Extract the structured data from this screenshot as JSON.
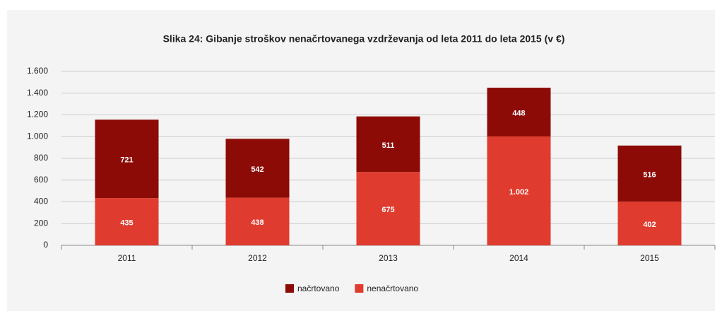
{
  "chart_data": {
    "type": "stacked_bar",
    "title": "Slika 24: Gibanje stroškov nenačrtovanega vzdrževanja od leta 2011 do leta 2015 (v €)",
    "categories": [
      "2011",
      "2012",
      "2013",
      "2014",
      "2015"
    ],
    "series": [
      {
        "name": "nenačrtovano",
        "color": "#e03b2f",
        "values": [
          435,
          438,
          675,
          1002,
          402
        ],
        "value_labels": [
          "435",
          "438",
          "675",
          "1.002",
          "402"
        ]
      },
      {
        "name": "načrtovano",
        "color": "#8c0b06",
        "values": [
          721,
          542,
          511,
          448,
          516
        ]
      }
    ],
    "ylim": [
      0,
      1600
    ],
    "yticks": [
      0,
      200,
      400,
      600,
      800,
      {
        "value": 1000,
        "label": "1.000"
      },
      {
        "value": 1200,
        "label": "1.200"
      },
      {
        "value": 1400,
        "label": "1.400"
      },
      {
        "value": 1600,
        "label": "1.600"
      }
    ],
    "grid": true,
    "legend": "bottom"
  }
}
